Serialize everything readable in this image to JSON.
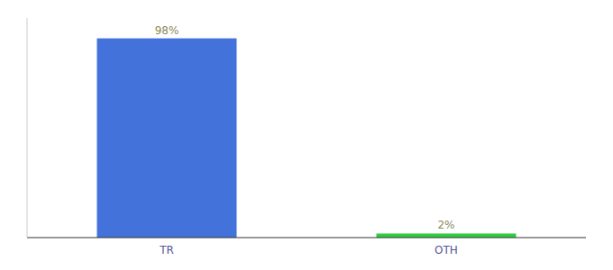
{
  "chart_data": {
    "type": "bar",
    "categories": [
      "TR",
      "OTH"
    ],
    "values": [
      98,
      2
    ],
    "value_labels": [
      "98%",
      "2%"
    ],
    "colors": [
      "#4472db",
      "#2ecc40"
    ],
    "ylim": [
      0,
      108
    ],
    "data_labels": true,
    "tick_labels": "x",
    "grid": false
  }
}
